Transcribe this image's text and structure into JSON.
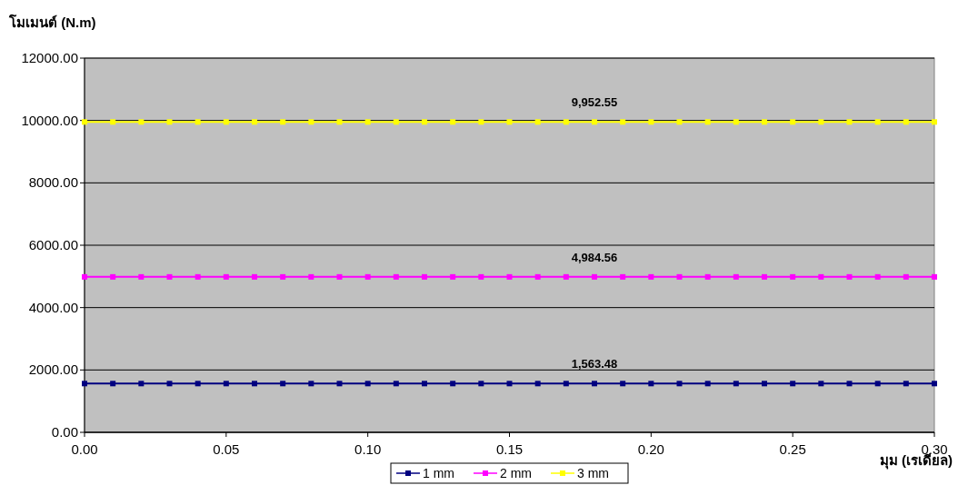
{
  "chart_data": {
    "type": "line",
    "ylabel": "โมเมนต์ (N.m)",
    "xlabel": "มุม (เรเดียล)",
    "x": [
      0,
      0.01,
      0.02,
      0.03,
      0.04,
      0.05,
      0.06,
      0.07,
      0.08,
      0.09,
      0.1,
      0.11,
      0.12,
      0.13,
      0.14,
      0.15,
      0.16,
      0.17,
      0.18,
      0.19,
      0.2,
      0.21,
      0.22,
      0.23,
      0.24,
      0.25,
      0.26,
      0.27,
      0.28,
      0.29,
      0.3
    ],
    "series": [
      {
        "name": "1 mm",
        "color": "#000080",
        "values": [
          1563.48,
          1563.48,
          1563.48,
          1563.48,
          1563.48,
          1563.48,
          1563.48,
          1563.48,
          1563.48,
          1563.48,
          1563.48,
          1563.48,
          1563.48,
          1563.48,
          1563.48,
          1563.48,
          1563.48,
          1563.48,
          1563.48,
          1563.48,
          1563.48,
          1563.48,
          1563.48,
          1563.48,
          1563.48,
          1563.48,
          1563.48,
          1563.48,
          1563.48,
          1563.48,
          1563.48
        ],
        "value_labels": [
          null,
          null,
          null,
          null,
          null,
          null,
          null,
          null,
          null,
          null,
          null,
          null,
          null,
          null,
          null,
          null,
          null,
          null,
          "1,563.48",
          null,
          null,
          null,
          null,
          null,
          null,
          null,
          null,
          null,
          null,
          null,
          null
        ]
      },
      {
        "name": "2 mm",
        "color": "#ff00ff",
        "values": [
          4984.56,
          4984.56,
          4984.56,
          4984.56,
          4984.56,
          4984.56,
          4984.56,
          4984.56,
          4984.56,
          4984.56,
          4984.56,
          4984.56,
          4984.56,
          4984.56,
          4984.56,
          4984.56,
          4984.56,
          4984.56,
          4984.56,
          4984.56,
          4984.56,
          4984.56,
          4984.56,
          4984.56,
          4984.56,
          4984.56,
          4984.56,
          4984.56,
          4984.56,
          4984.56,
          4984.56
        ],
        "value_labels": [
          null,
          null,
          null,
          null,
          null,
          null,
          null,
          null,
          null,
          null,
          null,
          null,
          null,
          null,
          null,
          null,
          null,
          null,
          "4,984.56",
          null,
          null,
          null,
          null,
          null,
          null,
          null,
          null,
          null,
          null,
          null,
          null
        ]
      },
      {
        "name": "3 mm",
        "color": "#ffff00",
        "values": [
          9952.55,
          9952.55,
          9952.55,
          9952.55,
          9952.55,
          9952.55,
          9952.55,
          9952.55,
          9952.55,
          9952.55,
          9952.55,
          9952.55,
          9952.55,
          9952.55,
          9952.55,
          9952.55,
          9952.55,
          9952.55,
          9952.55,
          9952.55,
          9952.55,
          9952.55,
          9952.55,
          9952.55,
          9952.55,
          9952.55,
          9952.55,
          9952.55,
          9952.55,
          9952.55,
          9952.55
        ],
        "value_labels": [
          null,
          null,
          null,
          null,
          null,
          null,
          null,
          null,
          null,
          null,
          null,
          null,
          null,
          null,
          null,
          null,
          null,
          null,
          "9,952.55",
          null,
          null,
          null,
          null,
          null,
          null,
          null,
          null,
          null,
          null,
          null,
          null
        ]
      }
    ],
    "xlim": [
      0,
      0.3
    ],
    "xticks": [
      {
        "value": 0,
        "label": "0.00"
      },
      {
        "value": 0.05,
        "label": "0.05"
      },
      {
        "value": 0.1,
        "label": "0.10"
      },
      {
        "value": 0.15,
        "label": "0.15"
      },
      {
        "value": 0.2,
        "label": "0.20"
      },
      {
        "value": 0.25,
        "label": "0.25"
      },
      {
        "value": 0.3,
        "label": "0.30"
      }
    ],
    "ylim": [
      0,
      12000
    ],
    "yticks": [
      {
        "value": 0,
        "label": "0.00"
      },
      {
        "value": 2000,
        "label": "2000.00"
      },
      {
        "value": 4000,
        "label": "4000.00"
      },
      {
        "value": 6000,
        "label": "6000.00"
      },
      {
        "value": 8000,
        "label": "8000.00"
      },
      {
        "value": 10000,
        "label": "10000.00"
      },
      {
        "value": 12000,
        "label": "12000.00"
      }
    ],
    "grid": "y",
    "legend": "bottom",
    "marker": "square",
    "line_style": "solid"
  }
}
